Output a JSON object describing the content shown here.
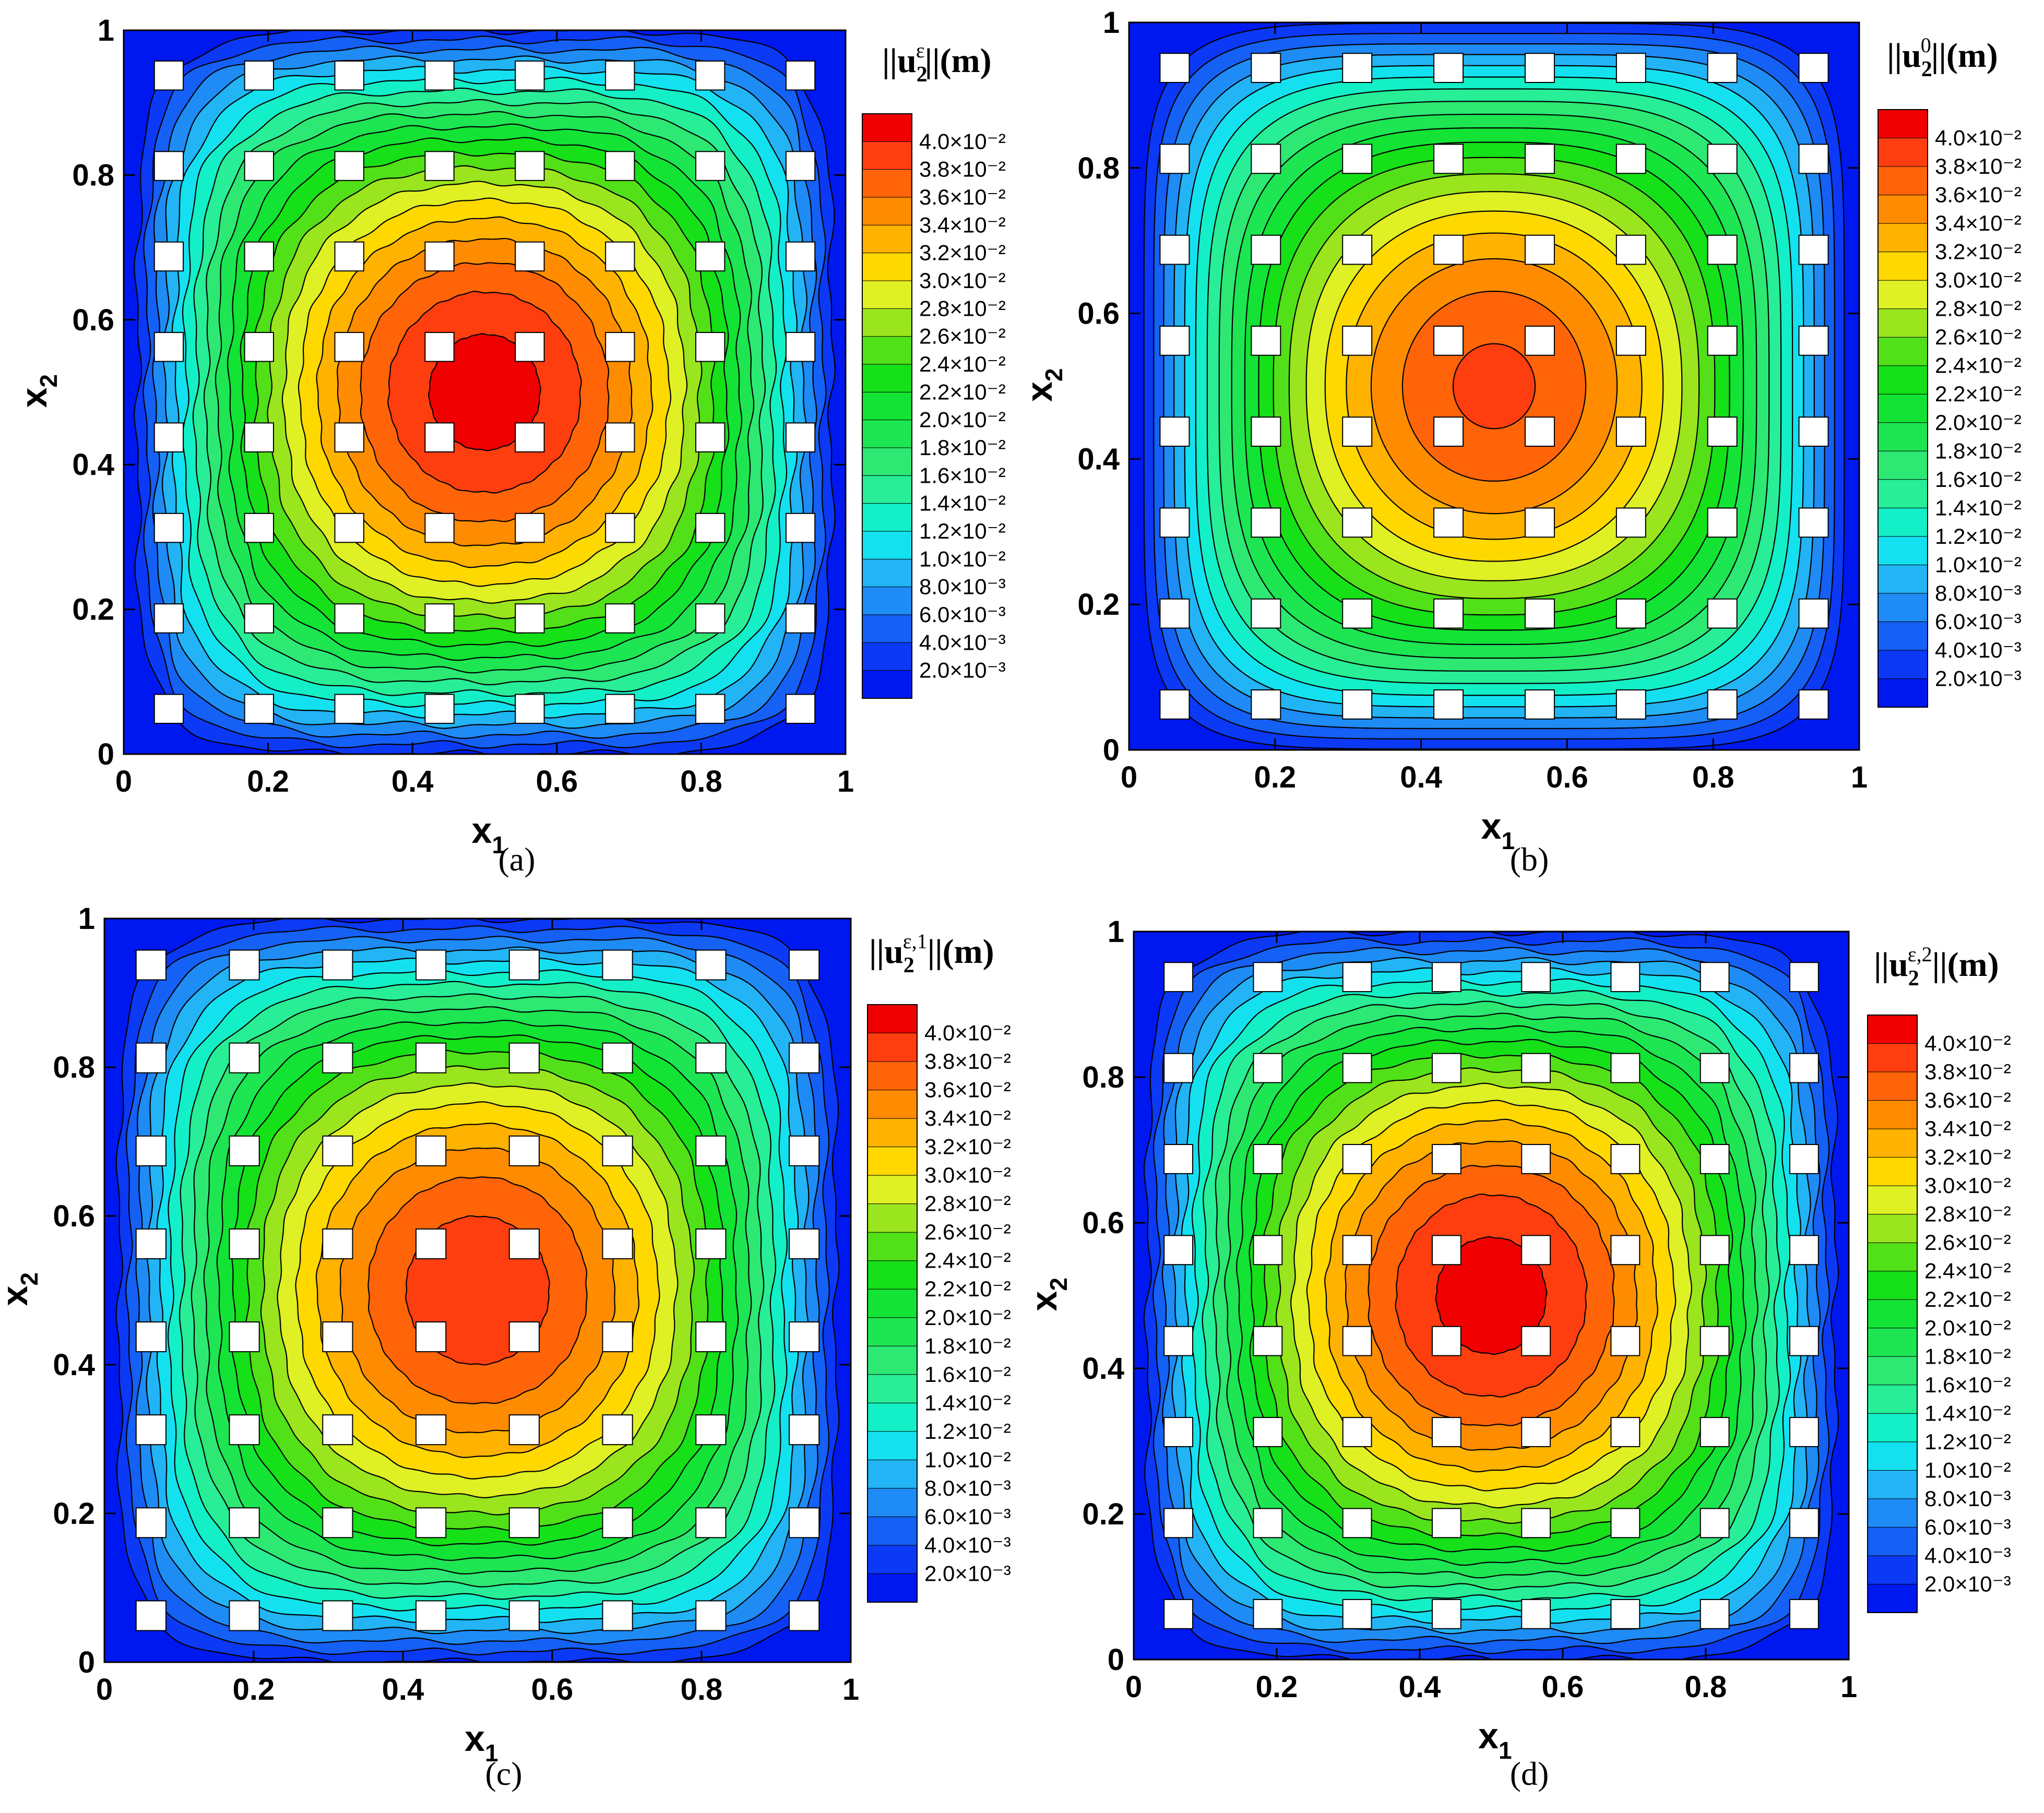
{
  "colors": {
    "levels": [
      "#0018f0",
      "#0b39f5",
      "#1560f5",
      "#1f8bf5",
      "#22b4f5",
      "#14e1f0",
      "#13efc6",
      "#27ee97",
      "#2de873",
      "#1ee552",
      "#12e334",
      "#15e018",
      "#52e018",
      "#9ae51d",
      "#dff024",
      "#ffd800",
      "#ffb200",
      "#ff8c00",
      "#ff6408",
      "#ff3e10",
      "#f00000"
    ]
  },
  "chart_data": [
    {
      "type": "contour",
      "panel": "(a)",
      "legend_title": "||u₂^ε||(m)",
      "legend_title_parts": {
        "base": "||u",
        "sub": "2",
        "sup": "ε",
        "tail": "||(m)"
      },
      "caption": "(a)",
      "xlabel": "x₁",
      "xlabel_base": "x",
      "xlabel_sub": "1",
      "ylabel": "x₂",
      "ylabel_base": "x",
      "ylabel_sub": "2",
      "xlim": [
        0,
        1
      ],
      "ylim": [
        0,
        1
      ],
      "xticks": [
        "0",
        "0.2",
        "0.4",
        "0.6",
        "0.8",
        "1"
      ],
      "yticks": [
        "0",
        "0.2",
        "0.4",
        "0.6",
        "0.8",
        "1"
      ],
      "levels": [
        "4.0×10⁻²",
        "3.8×10⁻²",
        "3.6×10⁻²",
        "3.4×10⁻²",
        "3.2×10⁻²",
        "3.0×10⁻²",
        "2.8×10⁻²",
        "2.6×10⁻²",
        "2.4×10⁻²",
        "2.2×10⁻²",
        "2.0×10⁻²",
        "1.8×10⁻²",
        "1.6×10⁻²",
        "1.4×10⁻²",
        "1.2×10⁻²",
        "1.0×10⁻²",
        "8.0×10⁻³",
        "6.0×10⁻³",
        "4.0×10⁻³",
        "2.0×10⁻³"
      ],
      "level_values": [
        0.04,
        0.038,
        0.036,
        0.034,
        0.032,
        0.03,
        0.028,
        0.026,
        0.024,
        0.022,
        0.02,
        0.018,
        0.016,
        0.014,
        0.012,
        0.01,
        0.008,
        0.006,
        0.004,
        0.002
      ],
      "max_value": 0.041,
      "peak": [
        0.5,
        0.5
      ],
      "wobble": 0.35,
      "holes": {
        "count_per_axis": 8,
        "centers": [
          0.0625,
          0.1875,
          0.3125,
          0.4375,
          0.5625,
          0.6875,
          0.8125,
          0.9375
        ],
        "size": 0.04
      }
    },
    {
      "type": "contour",
      "panel": "(b)",
      "legend_title": "||u₂^0||(m)",
      "legend_title_parts": {
        "base": "||u",
        "sub": "2",
        "sup": "0",
        "tail": "||(m)"
      },
      "caption": "(b)",
      "xlabel": "x₁",
      "xlabel_base": "x",
      "xlabel_sub": "1",
      "ylabel": "x₂",
      "ylabel_base": "x",
      "ylabel_sub": "2",
      "xlim": [
        0,
        1
      ],
      "ylim": [
        0,
        1
      ],
      "xticks": [
        "0",
        "0.2",
        "0.4",
        "0.6",
        "0.8",
        "1"
      ],
      "yticks": [
        "0",
        "0.2",
        "0.4",
        "0.6",
        "0.8",
        "1"
      ],
      "levels": [
        "4.0×10⁻²",
        "3.8×10⁻²",
        "3.6×10⁻²",
        "3.4×10⁻²",
        "3.2×10⁻²",
        "3.0×10⁻²",
        "2.8×10⁻²",
        "2.6×10⁻²",
        "2.4×10⁻²",
        "2.2×10⁻²",
        "2.0×10⁻²",
        "1.8×10⁻²",
        "1.6×10⁻²",
        "1.4×10⁻²",
        "1.2×10⁻²",
        "1.0×10⁻²",
        "8.0×10⁻³",
        "6.0×10⁻³",
        "4.0×10⁻³",
        "2.0×10⁻³"
      ],
      "level_values": [
        0.04,
        0.038,
        0.036,
        0.034,
        0.032,
        0.03,
        0.028,
        0.026,
        0.024,
        0.022,
        0.02,
        0.018,
        0.016,
        0.014,
        0.012,
        0.01,
        0.008,
        0.006,
        0.004,
        0.002
      ],
      "max_value": 0.0385,
      "peak": [
        0.5,
        0.5
      ],
      "wobble": 0.0,
      "holes": {
        "count_per_axis": 8,
        "centers": [
          0.0625,
          0.1875,
          0.3125,
          0.4375,
          0.5625,
          0.6875,
          0.8125,
          0.9375
        ],
        "size": 0.04
      }
    },
    {
      "type": "contour",
      "panel": "(c)",
      "legend_title": "||u₂^ε,1||(m)",
      "legend_title_parts": {
        "base": "||u",
        "sub": "2",
        "sup": "ε,1",
        "tail": "||(m)"
      },
      "caption": "(c)",
      "xlabel": "x₁",
      "xlabel_base": "x",
      "xlabel_sub": "1",
      "ylabel": "x₂",
      "ylabel_base": "x",
      "ylabel_sub": "2",
      "xlim": [
        0,
        1
      ],
      "ylim": [
        0,
        1
      ],
      "xticks": [
        "0",
        "0.2",
        "0.4",
        "0.6",
        "0.8",
        "1"
      ],
      "yticks": [
        "0",
        "0.2",
        "0.4",
        "0.6",
        "0.8",
        "1"
      ],
      "levels": [
        "4.0×10⁻²",
        "3.8×10⁻²",
        "3.6×10⁻²",
        "3.4×10⁻²",
        "3.2×10⁻²",
        "3.0×10⁻²",
        "2.8×10⁻²",
        "2.6×10⁻²",
        "2.4×10⁻²",
        "2.2×10⁻²",
        "2.0×10⁻²",
        "1.8×10⁻²",
        "1.6×10⁻²",
        "1.4×10⁻²",
        "1.2×10⁻²",
        "1.0×10⁻²",
        "8.0×10⁻³",
        "6.0×10⁻³",
        "4.0×10⁻³",
        "2.0×10⁻³"
      ],
      "level_values": [
        0.04,
        0.038,
        0.036,
        0.034,
        0.032,
        0.03,
        0.028,
        0.026,
        0.024,
        0.022,
        0.02,
        0.018,
        0.016,
        0.014,
        0.012,
        0.01,
        0.008,
        0.006,
        0.004,
        0.002
      ],
      "max_value": 0.0395,
      "peak": [
        0.5,
        0.5
      ],
      "wobble": 0.3,
      "holes": {
        "count_per_axis": 8,
        "centers": [
          0.0625,
          0.1875,
          0.3125,
          0.4375,
          0.5625,
          0.6875,
          0.8125,
          0.9375
        ],
        "size": 0.04
      }
    },
    {
      "type": "contour",
      "panel": "(d)",
      "legend_title": "||u₂^ε,2||(m)",
      "legend_title_parts": {
        "base": "||u",
        "sub": "2",
        "sup": "ε,2",
        "tail": "||(m)"
      },
      "caption": "(d)",
      "xlabel": "x₁",
      "xlabel_base": "x",
      "xlabel_sub": "1",
      "ylabel": "x₂",
      "ylabel_base": "x",
      "ylabel_sub": "2",
      "xlim": [
        0,
        1
      ],
      "ylim": [
        0,
        1
      ],
      "xticks": [
        "0",
        "0.2",
        "0.4",
        "0.6",
        "0.8",
        "1"
      ],
      "yticks": [
        "0",
        "0.2",
        "0.4",
        "0.6",
        "0.8",
        "1"
      ],
      "levels": [
        "4.0×10⁻²",
        "3.8×10⁻²",
        "3.6×10⁻²",
        "3.4×10⁻²",
        "3.2×10⁻²",
        "3.0×10⁻²",
        "2.8×10⁻²",
        "2.6×10⁻²",
        "2.4×10⁻²",
        "2.2×10⁻²",
        "2.0×10⁻²",
        "1.8×10⁻²",
        "1.6×10⁻²",
        "1.4×10⁻²",
        "1.2×10⁻²",
        "1.0×10⁻²",
        "8.0×10⁻³",
        "6.0×10⁻³",
        "4.0×10⁻³",
        "2.0×10⁻³"
      ],
      "level_values": [
        0.04,
        0.038,
        0.036,
        0.034,
        0.032,
        0.03,
        0.028,
        0.026,
        0.024,
        0.022,
        0.02,
        0.018,
        0.016,
        0.014,
        0.012,
        0.01,
        0.008,
        0.006,
        0.004,
        0.002
      ],
      "max_value": 0.041,
      "peak": [
        0.5,
        0.5
      ],
      "wobble": 0.35,
      "holes": {
        "count_per_axis": 8,
        "centers": [
          0.0625,
          0.1875,
          0.3125,
          0.4375,
          0.5625,
          0.6875,
          0.8125,
          0.9375
        ],
        "size": 0.04
      }
    }
  ]
}
